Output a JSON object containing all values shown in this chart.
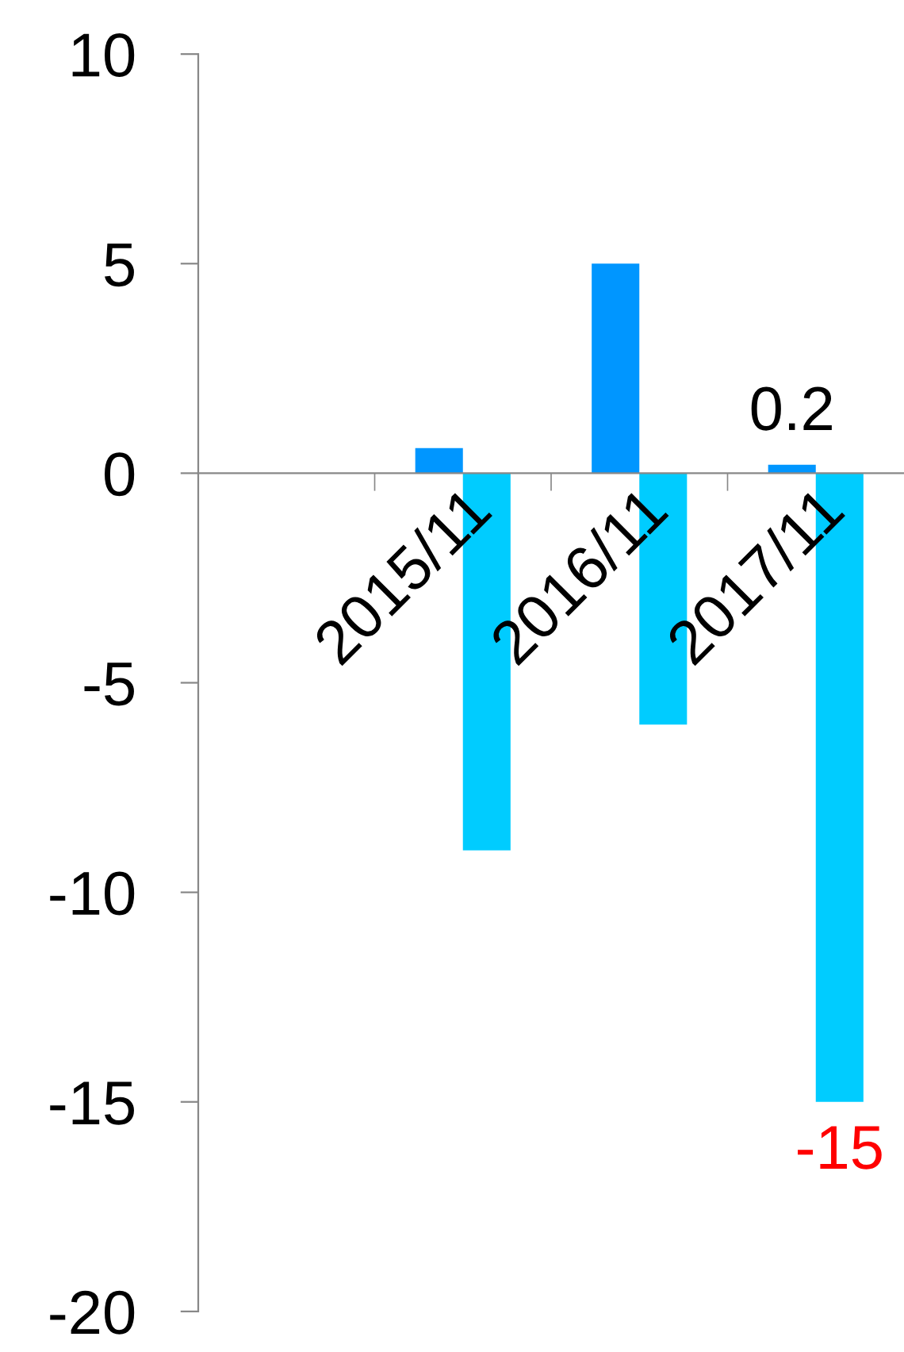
{
  "chart_data": {
    "type": "bar",
    "categories": [
      null,
      "2015/11",
      "2016/11",
      "2017/11"
    ],
    "series": [
      {
        "color": "#0096ff",
        "values": [
          null,
          0.6,
          5,
          0.2
        ],
        "value_labels": [
          null,
          null,
          null,
          "0.2"
        ]
      },
      {
        "color": "#00ccff",
        "values": [
          null,
          -9,
          -6,
          -15
        ],
        "value_labels": [
          null,
          null,
          null,
          "-15"
        ]
      }
    ],
    "ylim": [
      -20,
      10
    ],
    "yticks": [
      -20,
      -15,
      -10,
      -5,
      0,
      5,
      10
    ],
    "grid": false
  }
}
